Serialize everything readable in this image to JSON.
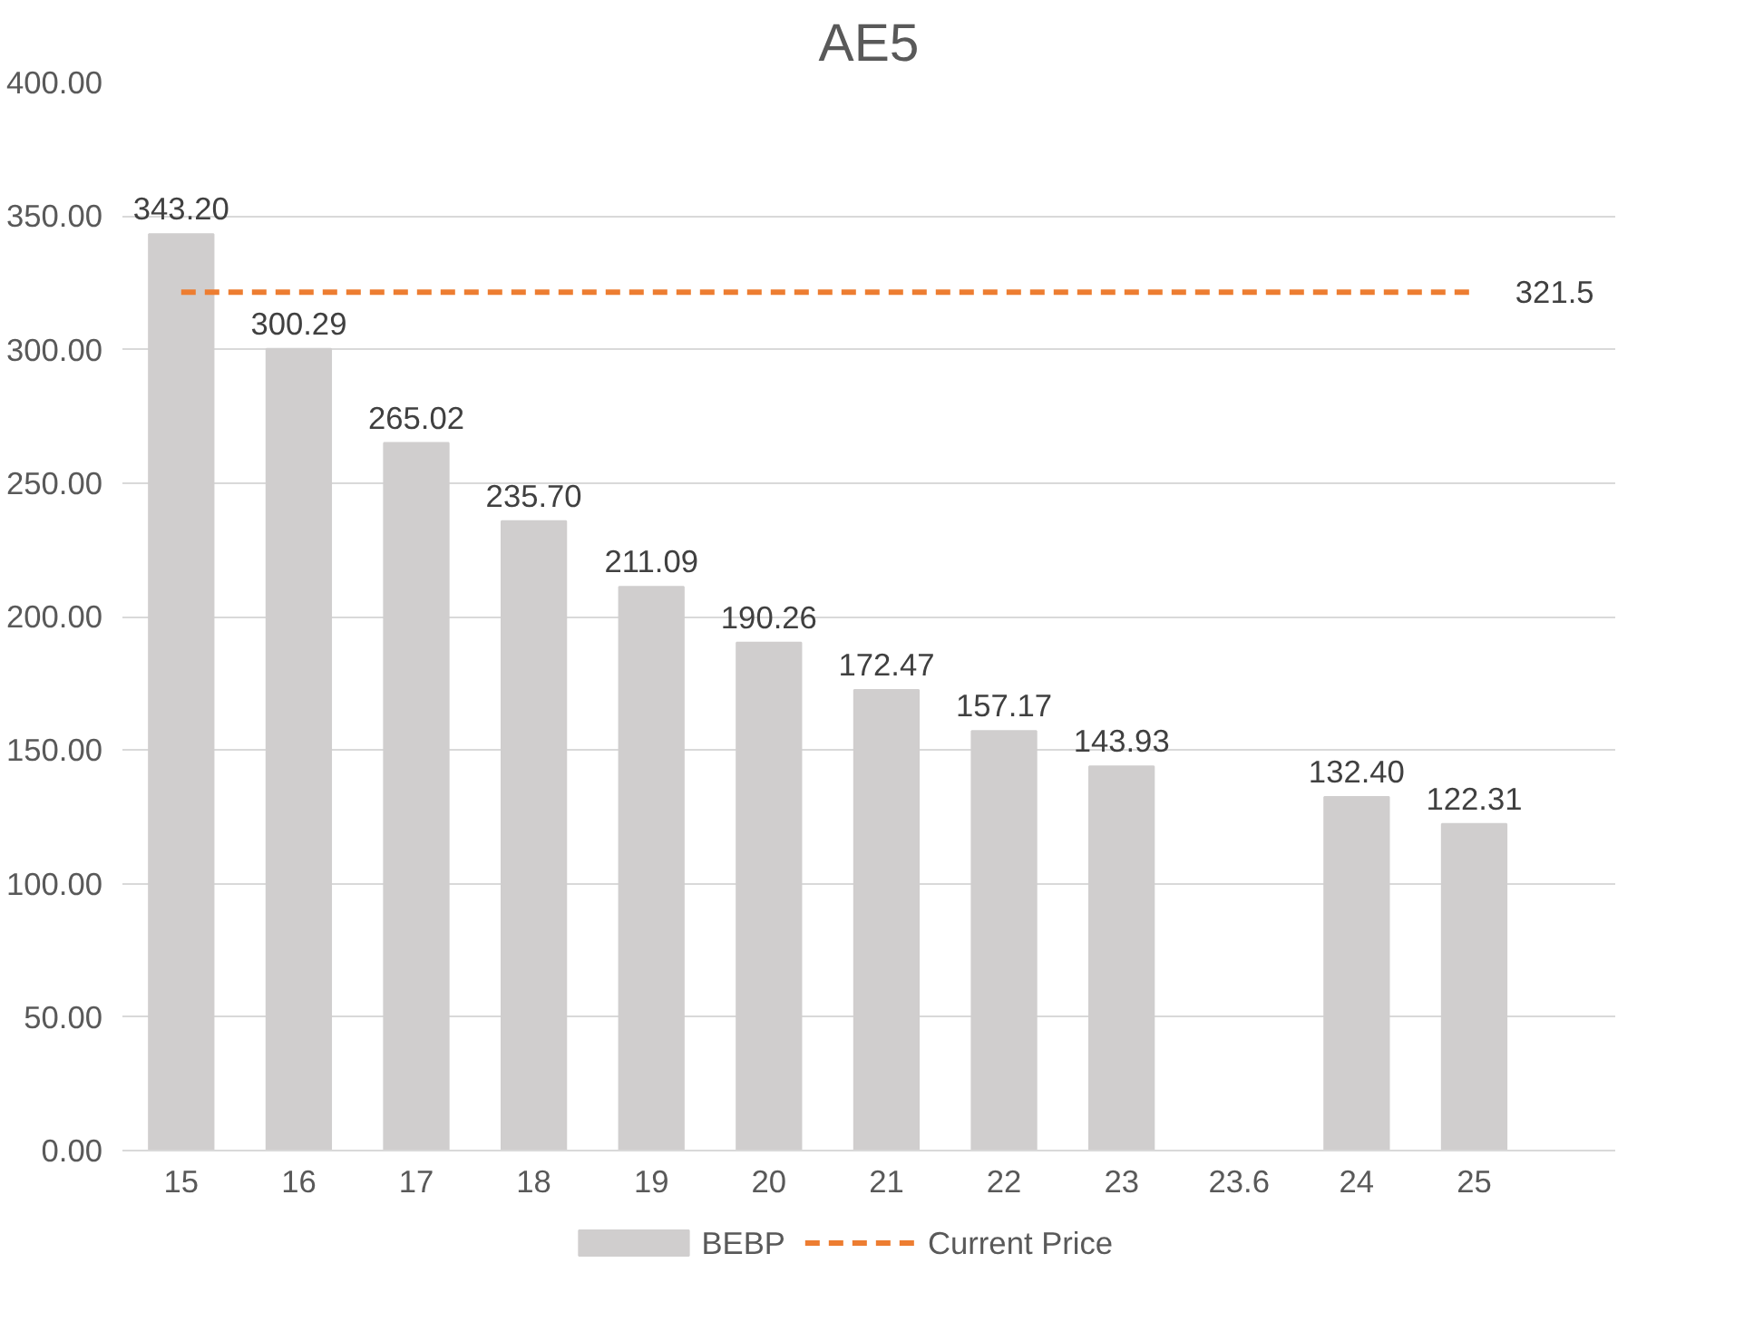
{
  "chart_data": {
    "type": "bar",
    "title": "AE5",
    "categories": [
      "15",
      "16",
      "17",
      "18",
      "19",
      "20",
      "21",
      "22",
      "23",
      "23.6",
      "24",
      "25"
    ],
    "series": [
      {
        "name": "BEBP",
        "color": "#d0cece",
        "values": [
          343.2,
          300.29,
          265.02,
          235.7,
          211.09,
          190.26,
          172.47,
          157.17,
          143.93,
          null,
          132.4,
          122.31
        ],
        "value_labels": [
          "343.20",
          "300.29",
          "265.02",
          "235.70",
          "211.09",
          "190.26",
          "172.47",
          "157.17",
          "143.93",
          null,
          "132.40",
          "122.31"
        ]
      },
      {
        "name": "Current Price",
        "type": "line",
        "color": "#ed7d31",
        "line_style": "dashed",
        "values": [
          321.5,
          321.5,
          321.5,
          321.5,
          321.5,
          321.5,
          321.5,
          321.5,
          321.5,
          321.5,
          321.5,
          321.5
        ],
        "value_labels": [
          null,
          null,
          null,
          null,
          null,
          null,
          null,
          null,
          null,
          null,
          null,
          "321.5"
        ]
      }
    ],
    "ylim": [
      0,
      400
    ],
    "yticks": [
      {
        "value": 0,
        "label": "0.00"
      },
      {
        "value": 50,
        "label": "50.00"
      },
      {
        "value": 100,
        "label": "100.00"
      },
      {
        "value": 150,
        "label": "150.00"
      },
      {
        "value": 200,
        "label": "200.00"
      },
      {
        "value": 250,
        "label": "250.00"
      },
      {
        "value": 300,
        "label": "300.00"
      },
      {
        "value": 350,
        "label": "350.00"
      },
      {
        "value": 400,
        "label": "400.00"
      }
    ],
    "grid": "y",
    "legend": "bottom"
  }
}
